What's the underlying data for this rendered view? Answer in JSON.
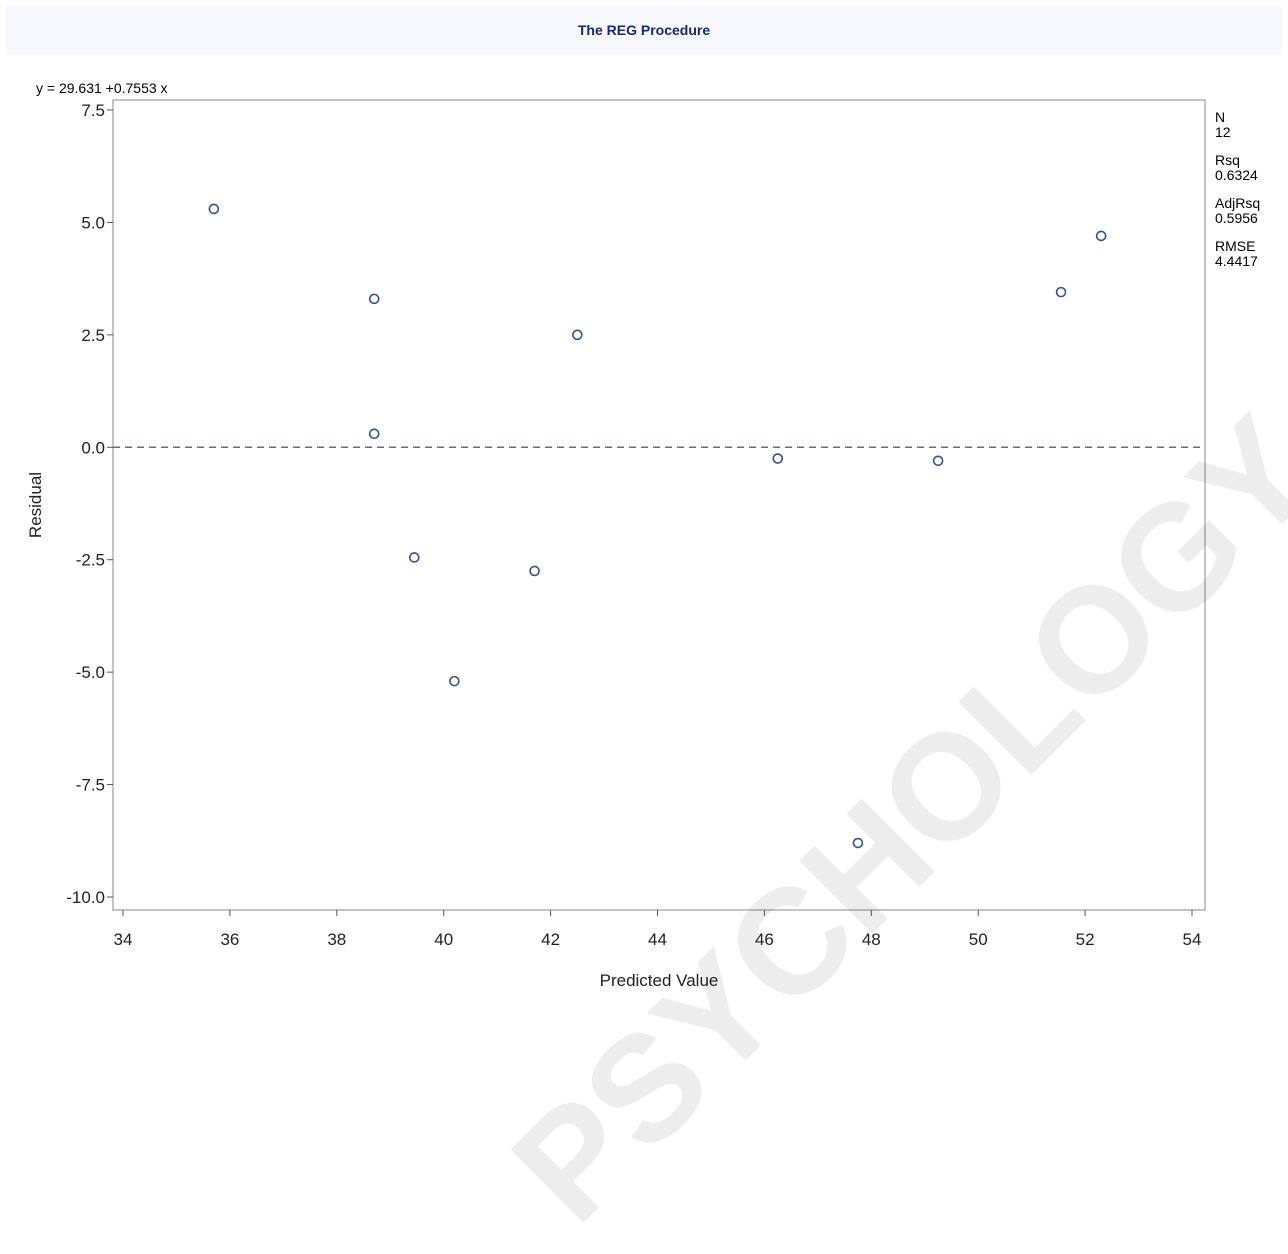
{
  "page": {
    "header_title": "The REG Procedure",
    "watermark": "PSYCHOLOGY.COM"
  },
  "chart_data": {
    "type": "scatter",
    "title": "",
    "equation": "y = 29.631 +0.7553 x",
    "xlabel": "Predicted Value",
    "ylabel": "Residual",
    "xlim": [
      34,
      54
    ],
    "ylim": [
      -10,
      7.5
    ],
    "xticks": [
      34,
      36,
      38,
      40,
      42,
      44,
      46,
      48,
      50,
      52,
      54
    ],
    "yticks": [
      -10.0,
      -7.5,
      -5.0,
      -2.5,
      0.0,
      2.5,
      5.0,
      7.5
    ],
    "reference_line": {
      "y": 0,
      "style": "dashed",
      "color": "#5b6e8c"
    },
    "marker": {
      "shape": "open-circle",
      "color": "#3a4f8c"
    },
    "points": [
      {
        "x": 35.7,
        "y": 5.3
      },
      {
        "x": 38.7,
        "y": 3.3
      },
      {
        "x": 38.7,
        "y": 0.3
      },
      {
        "x": 39.45,
        "y": -2.45
      },
      {
        "x": 40.2,
        "y": -5.2
      },
      {
        "x": 41.7,
        "y": -2.75
      },
      {
        "x": 42.5,
        "y": 2.5
      },
      {
        "x": 46.25,
        "y": -0.25
      },
      {
        "x": 47.75,
        "y": -8.8
      },
      {
        "x": 49.25,
        "y": -0.3
      },
      {
        "x": 51.55,
        "y": 3.45
      },
      {
        "x": 52.3,
        "y": 4.7
      }
    ],
    "stats": [
      {
        "label": "N",
        "value": "12"
      },
      {
        "label": "Rsq",
        "value": "0.6324"
      },
      {
        "label": "AdjRsq",
        "value": "0.5956"
      },
      {
        "label": "RMSE",
        "value": "4.4417"
      }
    ]
  }
}
